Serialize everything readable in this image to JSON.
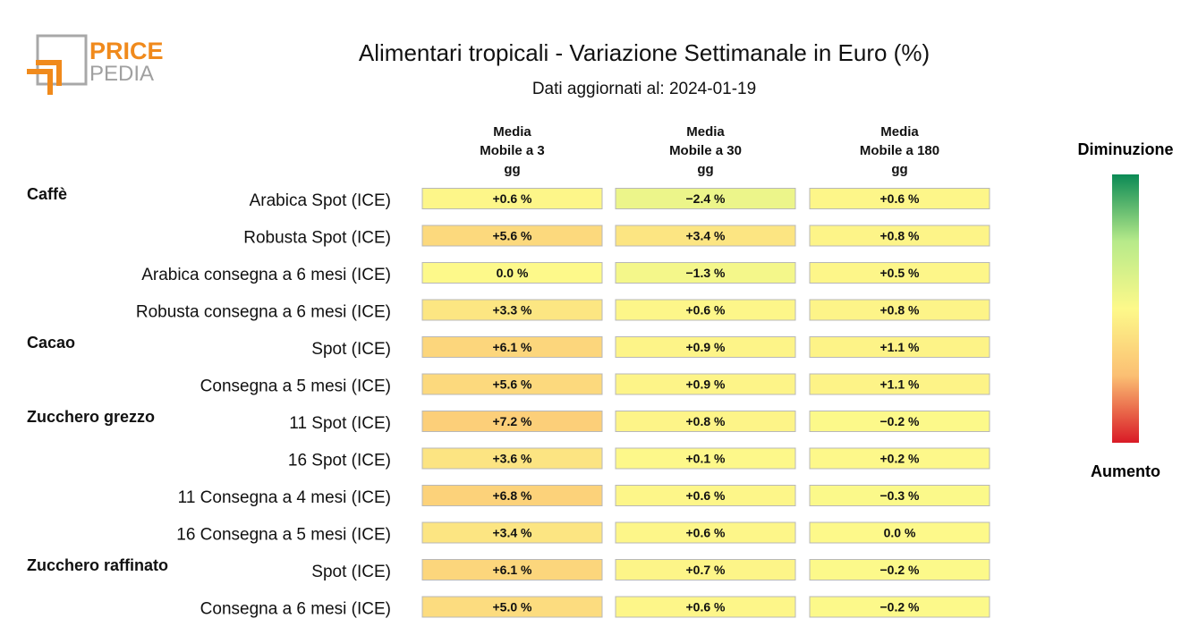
{
  "logo": {
    "line1": "PRICE",
    "line2": "PEDIA",
    "accent_color": "#f08a1c",
    "frame_color": "#a8a8a8"
  },
  "header": {
    "title": "Alimentari tropicali - Variazione Settimanale in Euro (%)",
    "subtitle": "Dati aggiornati al: 2024-01-19"
  },
  "legend": {
    "top_label": "Diminuzione",
    "bottom_label": "Aumento",
    "colors": [
      "#0b8a55",
      "#b7ea8a",
      "#fdf98a",
      "#fbbf73",
      "#d91a26"
    ]
  },
  "chart_data": {
    "type": "heatmap",
    "title": "Alimentari tropicali - Variazione Settimanale in Euro (%)",
    "unit": "%",
    "columns": [
      [
        "Media",
        "Mobile a 3",
        "gg"
      ],
      [
        "Media",
        "Mobile a 30",
        "gg"
      ],
      [
        "Media",
        "Mobile a 180",
        "gg"
      ]
    ],
    "groups": [
      {
        "name": "Caffè",
        "rows": [
          {
            "label": "Arabica Spot (ICE)",
            "values": [
              0.6,
              -2.4,
              0.6
            ]
          },
          {
            "label": "Robusta Spot (ICE)",
            "values": [
              5.6,
              3.4,
              0.8
            ]
          },
          {
            "label": "Arabica consegna a 6 mesi (ICE)",
            "values": [
              0.0,
              -1.3,
              0.5
            ]
          },
          {
            "label": "Robusta consegna a 6 mesi (ICE)",
            "values": [
              3.3,
              0.6,
              0.8
            ]
          }
        ]
      },
      {
        "name": "Cacao",
        "rows": [
          {
            "label": "Spot (ICE)",
            "values": [
              6.1,
              0.9,
              1.1
            ]
          },
          {
            "label": "Consegna a 5 mesi (ICE)",
            "values": [
              5.6,
              0.9,
              1.1
            ]
          }
        ]
      },
      {
        "name": "Zucchero grezzo",
        "rows": [
          {
            "label": "11 Spot (ICE)",
            "values": [
              7.2,
              0.8,
              -0.2
            ]
          },
          {
            "label": "16 Spot (ICE)",
            "values": [
              3.6,
              0.1,
              0.2
            ]
          },
          {
            "label": "11 Consegna a 4 mesi (ICE)",
            "values": [
              6.8,
              0.6,
              -0.3
            ]
          },
          {
            "label": "16 Consegna a 5 mesi (ICE)",
            "values": [
              3.4,
              0.6,
              0.0
            ]
          }
        ]
      },
      {
        "name": "Zucchero raffinato",
        "rows": [
          {
            "label": "Spot (ICE)",
            "values": [
              6.1,
              0.7,
              -0.2
            ]
          },
          {
            "label": "Consegna a 6 mesi (ICE)",
            "values": [
              5.0,
              0.6,
              -0.2
            ]
          }
        ]
      }
    ],
    "color_scale": {
      "min": -20,
      "max": 20
    }
  }
}
